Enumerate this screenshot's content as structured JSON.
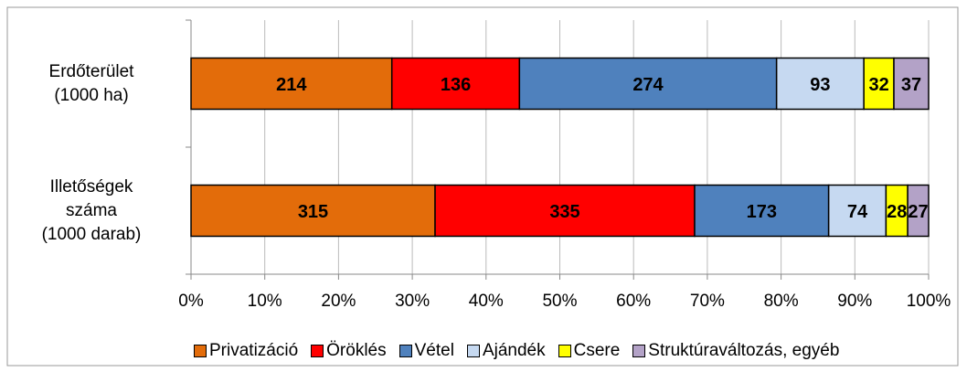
{
  "chart_data": {
    "type": "stacked-bar-100",
    "categories": [
      "Erdőterület\n(1000 ha)",
      "Illetőségek\nszáma\n(1000 darab)"
    ],
    "series": [
      {
        "name": "Privatizáció",
        "color": "#e36c0a",
        "values": [
          214,
          315
        ]
      },
      {
        "name": "Öröklés",
        "color": "#ff0000",
        "values": [
          136,
          335
        ]
      },
      {
        "name": "Vétel",
        "color": "#4f81bd",
        "values": [
          274,
          173
        ]
      },
      {
        "name": "Ajándék",
        "color": "#c6d9f1",
        "values": [
          93,
          74
        ]
      },
      {
        "name": "Csere",
        "color": "#ffff00",
        "values": [
          32,
          28
        ]
      },
      {
        "name": "Struktúraváltozás, egyéb",
        "color": "#b3a2c7",
        "values": [
          37,
          27
        ]
      }
    ],
    "xlim": [
      0,
      100
    ],
    "xticks": [
      {
        "value": 0,
        "label": "0%"
      },
      {
        "value": 10,
        "label": "10%"
      },
      {
        "value": 20,
        "label": "20%"
      },
      {
        "value": 30,
        "label": "30%"
      },
      {
        "value": 40,
        "label": "40%"
      },
      {
        "value": 50,
        "label": "50%"
      },
      {
        "value": 60,
        "label": "60%"
      },
      {
        "value": 70,
        "label": "70%"
      },
      {
        "value": 80,
        "label": "80%"
      },
      {
        "value": 90,
        "label": "90%"
      },
      {
        "value": 100,
        "label": "100%"
      }
    ],
    "grid": true,
    "legend": "bottom"
  }
}
